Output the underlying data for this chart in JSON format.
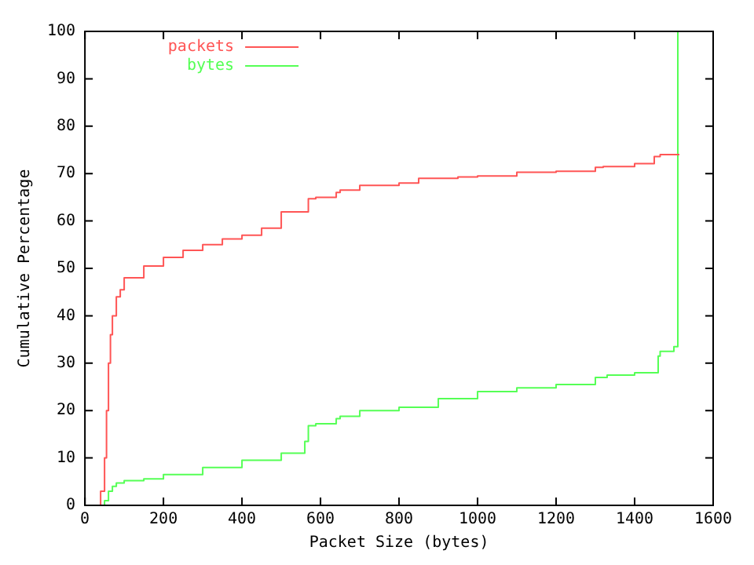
{
  "chart_data": {
    "type": "step",
    "xlabel": "Packet Size (bytes)",
    "ylabel": "Cumulative Percentage",
    "xlim": [
      0,
      1600
    ],
    "ylim": [
      0,
      100
    ],
    "xticks": [
      0,
      200,
      400,
      600,
      800,
      1000,
      1200,
      1400,
      1600
    ],
    "yticks": [
      0,
      10,
      20,
      30,
      40,
      50,
      60,
      70,
      80,
      90,
      100
    ],
    "grid": false,
    "legend": "top left",
    "marker": "none",
    "line_style": "solid",
    "series": [
      {
        "name": "packets",
        "color": "#ff5555",
        "x": [
          40,
          50,
          55,
          60,
          65,
          70,
          80,
          90,
          100,
          150,
          200,
          250,
          300,
          350,
          400,
          450,
          500,
          569,
          588,
          640,
          650,
          700,
          800,
          850,
          950,
          1000,
          1100,
          1200,
          1300,
          1320,
          1400,
          1450,
          1465,
          1514
        ],
        "values": [
          0,
          3,
          10,
          20,
          30,
          36,
          40,
          44,
          45.5,
          48,
          50.5,
          52.3,
          53.8,
          55,
          56.2,
          57,
          58.5,
          61.9,
          64.7,
          65,
          66,
          66.5,
          67.5,
          68,
          69,
          69.3,
          69.5,
          70.3,
          70.5,
          71.3,
          71.5,
          72.1,
          73.6,
          74
        ]
      },
      {
        "name": "bytes",
        "color": "#55ff55",
        "x": [
          50,
          60,
          70,
          80,
          100,
          150,
          200,
          300,
          400,
          500,
          560,
          569,
          588,
          640,
          650,
          700,
          800,
          900,
          1000,
          1100,
          1200,
          1300,
          1330,
          1400,
          1460,
          1465,
          1500,
          1510,
          1514
        ],
        "values": [
          0,
          1,
          3,
          4,
          4.7,
          5.2,
          5.6,
          6.5,
          8,
          9.5,
          11,
          13.5,
          16.8,
          17.2,
          18.3,
          18.8,
          20,
          20.7,
          22.5,
          24,
          24.8,
          25.5,
          27,
          27.5,
          28,
          31.5,
          32.5,
          33.5,
          100
        ]
      }
    ]
  }
}
